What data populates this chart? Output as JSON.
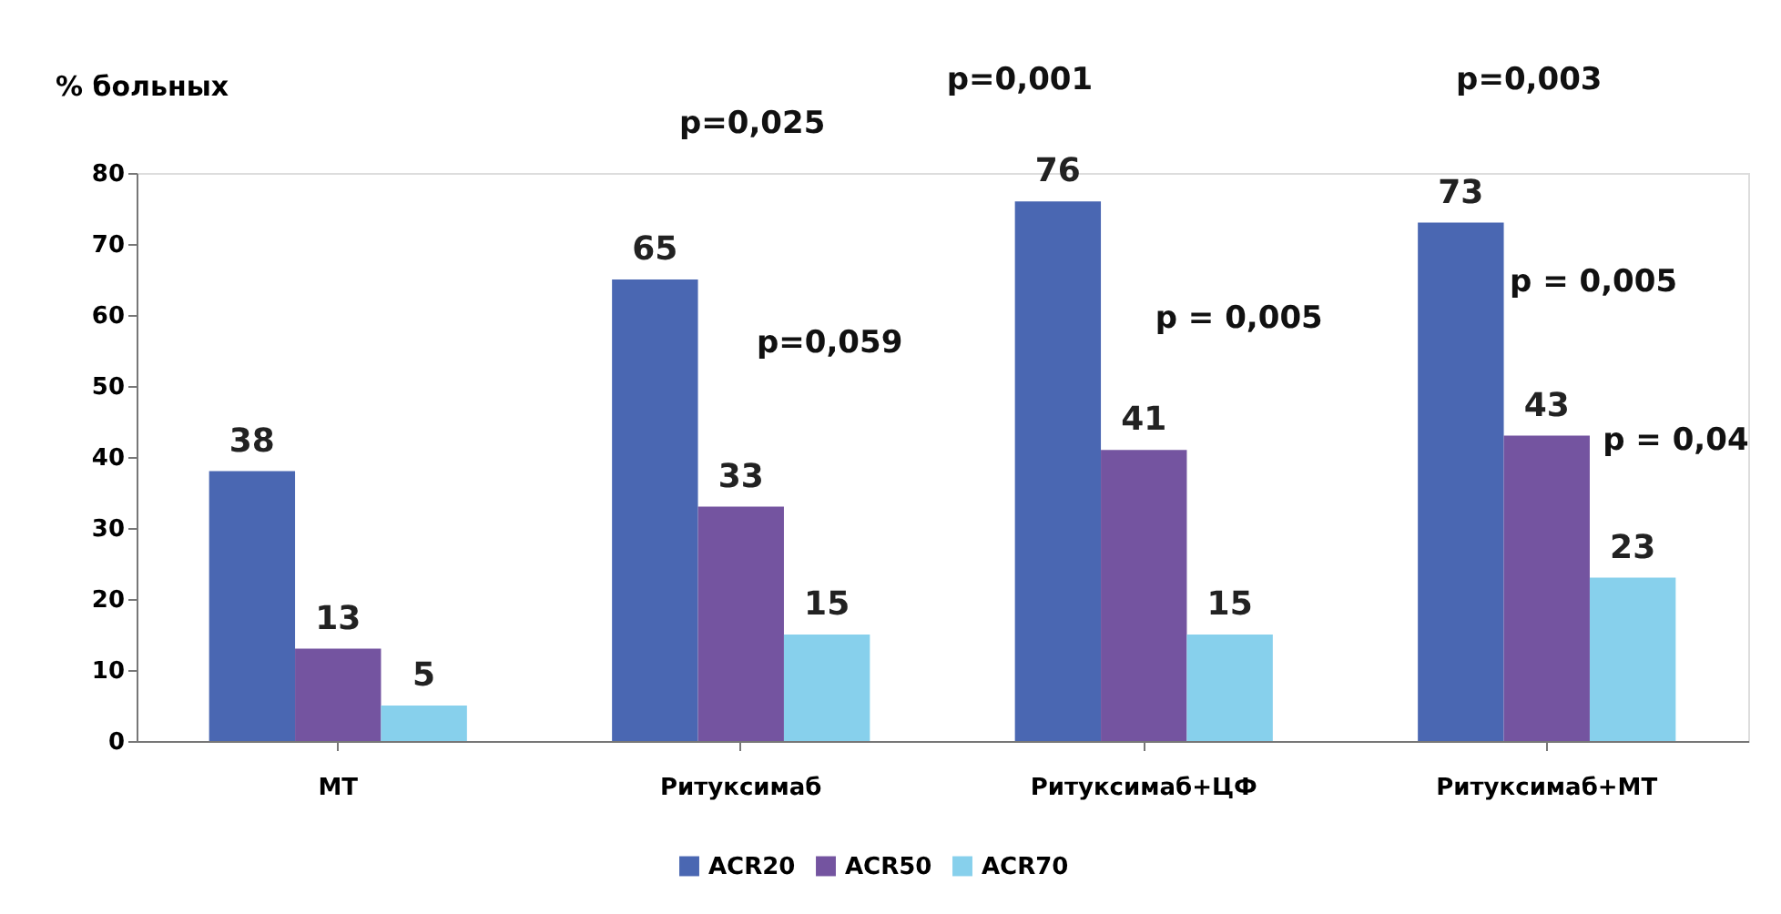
{
  "chart_data": {
    "type": "bar",
    "ylabel": "% больных",
    "categories": [
      "МТ",
      "Ритуксимаб",
      "Ритуксимаб+ЦФ",
      "Ритуксимаб+МТ"
    ],
    "series": [
      {
        "name": "ACR20",
        "color": "#4a67b2",
        "values": [
          38,
          65,
          76,
          73
        ]
      },
      {
        "name": "ACR50",
        "color": "#7454a0",
        "values": [
          13,
          33,
          41,
          43
        ]
      },
      {
        "name": "ACR70",
        "color": "#87d0ec",
        "values": [
          5,
          15,
          15,
          23
        ]
      }
    ],
    "ylim": [
      0,
      80
    ],
    "yticks": [
      0,
      10,
      20,
      30,
      40,
      50,
      60,
      70,
      80
    ],
    "grid": false,
    "legend": "bottom",
    "data_labels": true,
    "annotations": [
      "p=0,025",
      "p=0,059",
      "p=0,001",
      "p = 0,005",
      "p=0,003",
      "p = 0,005",
      "p = 0,04"
    ]
  }
}
